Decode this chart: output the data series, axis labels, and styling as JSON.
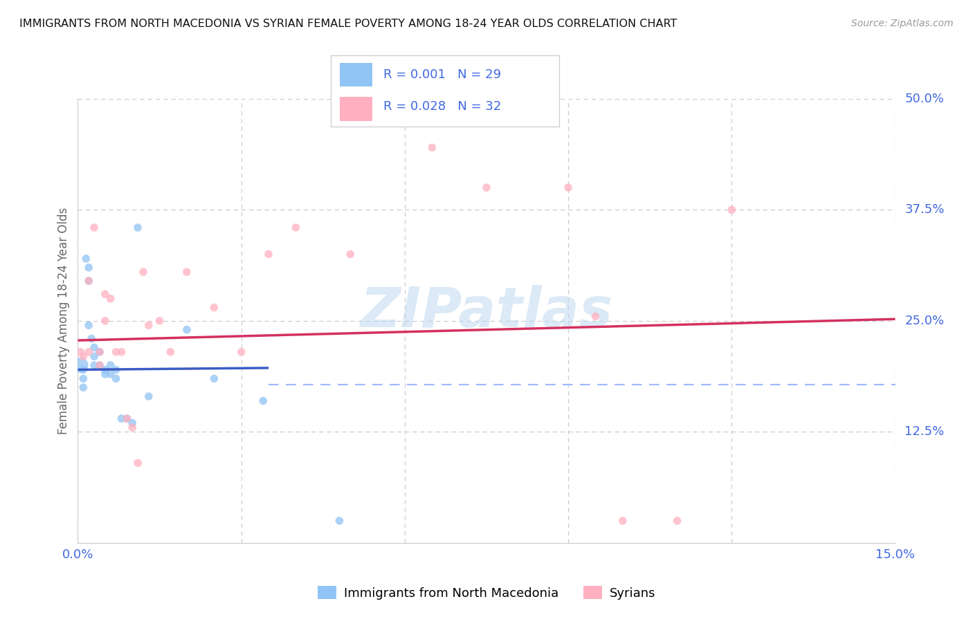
{
  "title": "IMMIGRANTS FROM NORTH MACEDONIA VS SYRIAN FEMALE POVERTY AMONG 18-24 YEAR OLDS CORRELATION CHART",
  "source": "Source: ZipAtlas.com",
  "ylabel": "Female Poverty Among 18-24 Year Olds",
  "xlim": [
    0.0,
    0.15
  ],
  "ylim": [
    0.0,
    0.5
  ],
  "x_ticks": [
    0.0,
    0.03,
    0.06,
    0.09,
    0.12,
    0.15
  ],
  "y_ticks": [
    0.0,
    0.125,
    0.25,
    0.375,
    0.5
  ],
  "y_tick_labels": [
    "",
    "12.5%",
    "25.0%",
    "37.5%",
    "50.0%"
  ],
  "background_color": "#ffffff",
  "grid_color": "#cccccc",
  "watermark": "ZIPatlas",
  "nm_color": "#90c4f4",
  "nm_R": 0.001,
  "nm_N": 29,
  "nm_trend_color": "#3a5cc5",
  "nm_trend_x0": 0.0,
  "nm_trend_x1": 0.035,
  "nm_trend_y0": 0.195,
  "nm_trend_y1": 0.197,
  "nm_x": [
    0.0005,
    0.001,
    0.001,
    0.001,
    0.0015,
    0.002,
    0.002,
    0.002,
    0.0025,
    0.003,
    0.003,
    0.003,
    0.004,
    0.004,
    0.005,
    0.005,
    0.006,
    0.006,
    0.007,
    0.007,
    0.008,
    0.009,
    0.01,
    0.011,
    0.013,
    0.02,
    0.025,
    0.034,
    0.048
  ],
  "nm_y": [
    0.2,
    0.195,
    0.185,
    0.175,
    0.32,
    0.31,
    0.295,
    0.245,
    0.23,
    0.22,
    0.21,
    0.2,
    0.215,
    0.2,
    0.195,
    0.19,
    0.2,
    0.19,
    0.195,
    0.185,
    0.14,
    0.14,
    0.135,
    0.355,
    0.165,
    0.24,
    0.185,
    0.16,
    0.025
  ],
  "nm_sizes": [
    260,
    70,
    70,
    70,
    70,
    70,
    70,
    70,
    70,
    70,
    70,
    70,
    70,
    70,
    70,
    70,
    70,
    70,
    70,
    70,
    70,
    70,
    70,
    70,
    70,
    70,
    70,
    70,
    70
  ],
  "sy_color": "#ffb0c0",
  "sy_R": 0.028,
  "sy_N": 32,
  "sy_trend_color": "#d43060",
  "sy_trend_x0": 0.0,
  "sy_trend_x1": 0.15,
  "sy_trend_y0": 0.228,
  "sy_trend_y1": 0.252,
  "sy_x": [
    0.0005,
    0.001,
    0.002,
    0.002,
    0.003,
    0.004,
    0.004,
    0.005,
    0.005,
    0.006,
    0.007,
    0.008,
    0.009,
    0.01,
    0.011,
    0.012,
    0.013,
    0.015,
    0.017,
    0.02,
    0.025,
    0.03,
    0.035,
    0.04,
    0.05,
    0.065,
    0.075,
    0.09,
    0.095,
    0.1,
    0.11,
    0.12
  ],
  "sy_y": [
    0.215,
    0.21,
    0.215,
    0.295,
    0.355,
    0.2,
    0.215,
    0.25,
    0.28,
    0.275,
    0.215,
    0.215,
    0.14,
    0.13,
    0.09,
    0.305,
    0.245,
    0.25,
    0.215,
    0.305,
    0.265,
    0.215,
    0.325,
    0.355,
    0.325,
    0.445,
    0.4,
    0.4,
    0.255,
    0.025,
    0.025,
    0.375
  ],
  "sy_sizes": [
    70,
    70,
    70,
    70,
    70,
    70,
    70,
    70,
    70,
    70,
    70,
    70,
    70,
    70,
    70,
    70,
    70,
    70,
    70,
    70,
    70,
    70,
    70,
    70,
    70,
    70,
    70,
    70,
    70,
    70,
    70,
    70
  ],
  "legend_label_macedonia": "Immigrants from North Macedonia",
  "legend_label_syrians": "Syrians",
  "dashed_line_y": 0.178,
  "dashed_line_color": "#a0b8ff",
  "tick_color": "#4169e1",
  "title_fontsize": 11.5,
  "source_fontsize": 10,
  "axis_label_fontsize": 12,
  "tick_fontsize": 13,
  "legend_fontsize": 13
}
